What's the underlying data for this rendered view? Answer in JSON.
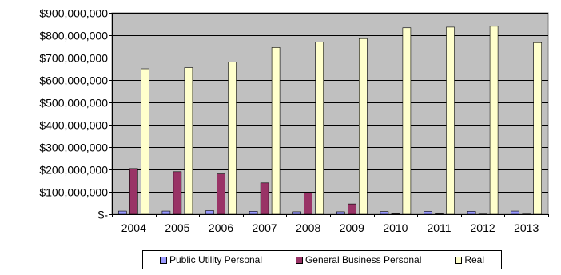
{
  "chart_data": {
    "type": "bar",
    "categories": [
      "2004",
      "2005",
      "2006",
      "2007",
      "2008",
      "2009",
      "2010",
      "2011",
      "2012",
      "2013"
    ],
    "series": [
      {
        "name": "Public Utility Personal",
        "color": "#9999FF",
        "values": [
          14000000,
          14000000,
          16000000,
          13000000,
          11000000,
          11000000,
          12000000,
          13000000,
          13000000,
          14000000
        ]
      },
      {
        "name": "General Business Personal",
        "color": "#993366",
        "values": [
          204000000,
          190000000,
          180000000,
          140000000,
          94000000,
          46000000,
          2000000,
          2000000,
          1000000,
          1000000
        ]
      },
      {
        "name": "Real",
        "color": "#FFFFCC",
        "values": [
          650000000,
          655000000,
          680000000,
          745000000,
          770000000,
          785000000,
          833000000,
          836000000,
          840000000,
          767000000
        ]
      }
    ],
    "ylim": [
      0,
      900000000
    ],
    "y_ticks": [
      {
        "value": 0,
        "label": "$-"
      },
      {
        "value": 100000000,
        "label": "$100,000,000"
      },
      {
        "value": 200000000,
        "label": "$200,000,000"
      },
      {
        "value": 300000000,
        "label": "$300,000,000"
      },
      {
        "value": 400000000,
        "label": "$400,000,000"
      },
      {
        "value": 500000000,
        "label": "$500,000,000"
      },
      {
        "value": 600000000,
        "label": "$600,000,000"
      },
      {
        "value": 700000000,
        "label": "$700,000,000"
      },
      {
        "value": 800000000,
        "label": "$800,000,000"
      },
      {
        "value": 900000000,
        "label": "$900,000,000"
      }
    ],
    "plot_background": "#C0C0C0",
    "grid": true,
    "legend_position": "bottom"
  }
}
